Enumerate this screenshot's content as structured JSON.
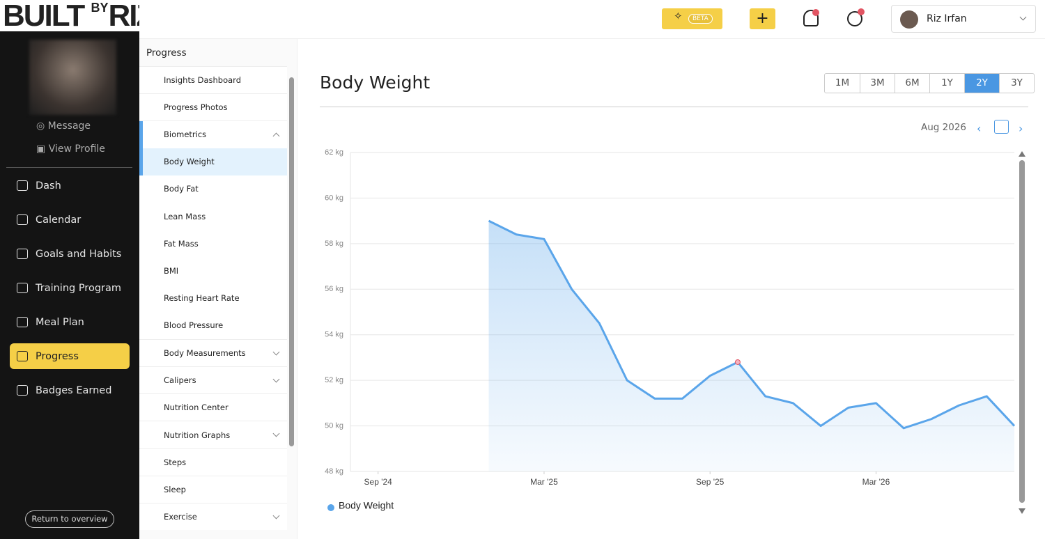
{
  "header": {
    "logo": [
      "BUILT",
      "BY",
      "RIZ"
    ],
    "beta": "BETA",
    "user": "Riz Irfan"
  },
  "sidebar": {
    "profile_links": [
      "Message",
      "View Profile"
    ],
    "nav": [
      {
        "label": "Dash",
        "active": false
      },
      {
        "label": "Calendar",
        "active": false
      },
      {
        "label": "Goals and Habits",
        "active": false
      },
      {
        "label": "Training Program",
        "active": false
      },
      {
        "label": "Meal Plan",
        "active": false
      },
      {
        "label": "Progress",
        "active": true
      },
      {
        "label": "Badges Earned",
        "active": false
      }
    ],
    "return": "Return to overview"
  },
  "submenu": {
    "title": "Progress",
    "items": [
      {
        "label": "Insights Dashboard",
        "level": 0
      },
      {
        "label": "Progress Photos",
        "level": 0
      },
      {
        "label": "Biometrics",
        "level": 0,
        "expand": "open"
      },
      {
        "label": "Body Weight",
        "level": 1,
        "selected": true
      },
      {
        "label": "Body Fat",
        "level": 1
      },
      {
        "label": "Lean Mass",
        "level": 1
      },
      {
        "label": "Fat Mass",
        "level": 1
      },
      {
        "label": "BMI",
        "level": 1
      },
      {
        "label": "Resting Heart Rate",
        "level": 1
      },
      {
        "label": "Blood Pressure",
        "level": 1
      },
      {
        "label": "Body Measurements",
        "level": 0,
        "expand": "closed"
      },
      {
        "label": "Calipers",
        "level": 0,
        "expand": "closed"
      },
      {
        "label": "Nutrition Center",
        "level": 0
      },
      {
        "label": "Nutrition Graphs",
        "level": 0,
        "expand": "closed"
      },
      {
        "label": "Steps",
        "level": 0
      },
      {
        "label": "Sleep",
        "level": 0
      },
      {
        "label": "Exercise",
        "level": 0,
        "expand": "closed"
      }
    ]
  },
  "panel": {
    "title": "Body Weight",
    "period": "Aug 2026",
    "ranges": [
      {
        "label": "1M",
        "active": false
      },
      {
        "label": "3M",
        "active": false
      },
      {
        "label": "6M",
        "active": false
      },
      {
        "label": "1Y",
        "active": false
      },
      {
        "label": "2Y",
        "active": true
      },
      {
        "label": "3Y",
        "active": false
      }
    ]
  },
  "chart_data": {
    "type": "area",
    "x": [
      "2025-01",
      "2025-02",
      "2025-03",
      "2025-04",
      "2025-05",
      "2025-06",
      "2025-07",
      "2025-08",
      "2025-09",
      "2025-10",
      "2025-11",
      "2025-12",
      "2026-01",
      "2026-02",
      "2026-03",
      "2026-04",
      "2026-05",
      "2026-06",
      "2026-07",
      "2026-08"
    ],
    "series": [
      {
        "name": "Body Weight",
        "color": "#5aa5ea",
        "values": [
          59.0,
          58.4,
          58.2,
          56.0,
          54.5,
          52.0,
          51.2,
          51.2,
          52.2,
          52.8,
          51.3,
          51.0,
          50.0,
          50.8,
          51.0,
          49.9,
          50.3,
          50.9,
          51.3,
          50.0
        ]
      }
    ],
    "xlim": [
      "2024-08",
      "2026-08"
    ],
    "xticks": [
      {
        "value": "2024-09",
        "label": "Sep '24"
      },
      {
        "value": "2025-03",
        "label": "Mar '25"
      },
      {
        "value": "2025-09",
        "label": "Sep '25"
      },
      {
        "value": "2026-03",
        "label": "Mar '26"
      }
    ],
    "ylim": [
      48,
      62
    ],
    "yticks": [
      {
        "value": 48,
        "label": "48 kg"
      },
      {
        "value": 50,
        "label": "50 kg"
      },
      {
        "value": 52,
        "label": "52 kg"
      },
      {
        "value": 54,
        "label": "54 kg"
      },
      {
        "value": 56,
        "label": "56 kg"
      },
      {
        "value": 58,
        "label": "58 kg"
      },
      {
        "value": 60,
        "label": "60 kg"
      },
      {
        "value": 62,
        "label": "62 kg"
      }
    ],
    "grid": true,
    "highlight": 9
  }
}
